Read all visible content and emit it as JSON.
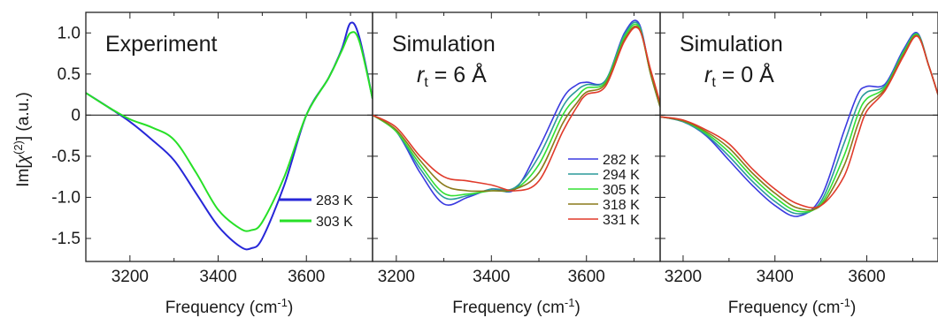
{
  "figure": {
    "ylabel_prefix": "Im[",
    "ylabel_chi": "χ",
    "ylabel_sup": "(2)",
    "ylabel_suffix": "] (a.u.)",
    "xlabel": "Frequency (cm",
    "xlabel_sup": "-1",
    "xlabel_suffix": ")",
    "yticks": [
      1.0,
      0.5,
      0,
      -0.5,
      -1.0,
      -1.5
    ],
    "ytick_labels": [
      "1.0",
      "0.5",
      "0",
      "-0.5",
      "-1.0",
      "-1.5"
    ]
  },
  "chart_data": [
    {
      "type": "line",
      "title": "Experiment",
      "xlabel": "Frequency (cm-1)",
      "ylabel": "Im[χ(2)] (a.u.)",
      "xlim": [
        3100,
        3750
      ],
      "ylim": [
        -1.78,
        1.25
      ],
      "xticks": [
        3200,
        3400,
        3600
      ],
      "xtick_labels": [
        "3200",
        "3400",
        "3600"
      ],
      "legend_position": "lower-right",
      "series": [
        {
          "name": "283 K",
          "color": "#2727d8",
          "x": [
            3100,
            3150,
            3200,
            3250,
            3300,
            3350,
            3400,
            3450,
            3475,
            3500,
            3550,
            3600,
            3650,
            3680,
            3700,
            3720,
            3750
          ],
          "y": [
            0.27,
            0.1,
            -0.08,
            -0.3,
            -0.55,
            -0.95,
            -1.35,
            -1.6,
            -1.62,
            -1.5,
            -0.85,
            0.0,
            0.45,
            0.8,
            1.12,
            0.95,
            0.2
          ]
        },
        {
          "name": "303 K",
          "color": "#27e027",
          "x": [
            3100,
            3150,
            3200,
            3250,
            3300,
            3350,
            3400,
            3450,
            3475,
            3500,
            3550,
            3600,
            3650,
            3680,
            3700,
            3720,
            3750
          ],
          "y": [
            0.27,
            0.1,
            -0.05,
            -0.15,
            -0.3,
            -0.7,
            -1.15,
            -1.38,
            -1.4,
            -1.3,
            -0.75,
            0.0,
            0.45,
            0.78,
            1.0,
            0.9,
            0.2
          ]
        }
      ]
    },
    {
      "type": "line",
      "title": "Simulation",
      "subtitle_r": "r",
      "subtitle_sub": "t",
      "subtitle_value": " = 6 Å",
      "xlabel": "Frequency (cm-1)",
      "xlim": [
        3150,
        3755
      ],
      "ylim": [
        -1.78,
        1.25
      ],
      "xticks": [
        3200,
        3400,
        3600
      ],
      "xtick_labels": [
        "3200",
        "3400",
        "3600"
      ],
      "legend_position": "lower-right",
      "series": [
        {
          "name": "282 K",
          "color": "#3a3ae0",
          "x": [
            3150,
            3200,
            3250,
            3300,
            3350,
            3400,
            3450,
            3500,
            3550,
            3580,
            3600,
            3640,
            3680,
            3710,
            3735,
            3755
          ],
          "y": [
            0.0,
            -0.2,
            -0.7,
            -1.08,
            -1.0,
            -0.9,
            -0.9,
            -0.4,
            0.2,
            0.37,
            0.4,
            0.42,
            1.0,
            1.12,
            0.5,
            0.1
          ]
        },
        {
          "name": "294 K",
          "color": "#2a9a9a",
          "x": [
            3150,
            3200,
            3250,
            3300,
            3350,
            3400,
            3450,
            3500,
            3550,
            3580,
            3600,
            3640,
            3680,
            3710,
            3735,
            3755
          ],
          "y": [
            0.0,
            -0.2,
            -0.65,
            -1.0,
            -0.98,
            -0.9,
            -0.88,
            -0.5,
            0.1,
            0.3,
            0.37,
            0.42,
            0.98,
            1.1,
            0.5,
            0.1
          ]
        },
        {
          "name": "305 K",
          "color": "#33e033",
          "x": [
            3150,
            3200,
            3250,
            3300,
            3350,
            3400,
            3450,
            3500,
            3550,
            3580,
            3600,
            3640,
            3680,
            3710,
            3735,
            3755
          ],
          "y": [
            0.0,
            -0.2,
            -0.6,
            -0.95,
            -0.96,
            -0.92,
            -0.9,
            -0.6,
            0.0,
            0.22,
            0.33,
            0.4,
            0.95,
            1.08,
            0.5,
            0.1
          ]
        },
        {
          "name": "318 K",
          "color": "#8a7a1a",
          "x": [
            3150,
            3200,
            3250,
            3300,
            3350,
            3400,
            3450,
            3500,
            3550,
            3580,
            3600,
            3640,
            3680,
            3710,
            3735,
            3755
          ],
          "y": [
            0.0,
            -0.18,
            -0.55,
            -0.85,
            -0.92,
            -0.92,
            -0.9,
            -0.7,
            -0.1,
            0.15,
            0.28,
            0.38,
            0.92,
            1.06,
            0.5,
            0.1
          ]
        },
        {
          "name": "331 K",
          "color": "#e03a2a",
          "x": [
            3150,
            3200,
            3250,
            3300,
            3350,
            3400,
            3450,
            3500,
            3550,
            3580,
            3600,
            3640,
            3680,
            3710,
            3735,
            3755
          ],
          "y": [
            0.0,
            -0.15,
            -0.5,
            -0.75,
            -0.8,
            -0.85,
            -0.92,
            -0.8,
            -0.2,
            0.1,
            0.25,
            0.35,
            0.9,
            1.05,
            0.55,
            0.15
          ]
        }
      ]
    },
    {
      "type": "line",
      "title": "Simulation",
      "subtitle_r": "r",
      "subtitle_sub": "t",
      "subtitle_value": " = 0 Å",
      "xlabel": "Frequency (cm-1)",
      "xlim": [
        3150,
        3755
      ],
      "ylim": [
        -1.78,
        1.25
      ],
      "xticks": [
        3200,
        3400,
        3600
      ],
      "xtick_labels": [
        "3200",
        "3400",
        "3600"
      ],
      "series": [
        {
          "name": "282 K",
          "color": "#3a3ae0",
          "x": [
            3150,
            3200,
            3250,
            3300,
            3350,
            3400,
            3450,
            3500,
            3550,
            3580,
            3600,
            3640,
            3680,
            3710,
            3735,
            3755
          ],
          "y": [
            -0.02,
            -0.08,
            -0.25,
            -0.55,
            -0.85,
            -1.1,
            -1.23,
            -1.0,
            -0.2,
            0.25,
            0.35,
            0.38,
            0.8,
            1.0,
            0.6,
            0.25
          ]
        },
        {
          "name": "294 K",
          "color": "#2a9a9a",
          "x": [
            3150,
            3200,
            3250,
            3300,
            3350,
            3400,
            3450,
            3500,
            3550,
            3580,
            3600,
            3640,
            3680,
            3710,
            3735,
            3755
          ],
          "y": [
            -0.02,
            -0.08,
            -0.24,
            -0.5,
            -0.8,
            -1.05,
            -1.2,
            -1.05,
            -0.35,
            0.12,
            0.28,
            0.36,
            0.78,
            0.99,
            0.6,
            0.25
          ]
        },
        {
          "name": "305 K",
          "color": "#33e033",
          "x": [
            3150,
            3200,
            3250,
            3300,
            3350,
            3400,
            3450,
            3500,
            3550,
            3580,
            3600,
            3640,
            3680,
            3710,
            3735,
            3755
          ],
          "y": [
            -0.02,
            -0.07,
            -0.22,
            -0.45,
            -0.75,
            -1.0,
            -1.17,
            -1.08,
            -0.5,
            0.0,
            0.2,
            0.34,
            0.76,
            0.98,
            0.6,
            0.25
          ]
        },
        {
          "name": "318 K",
          "color": "#8a7a1a",
          "x": [
            3150,
            3200,
            3250,
            3300,
            3350,
            3400,
            3450,
            3500,
            3550,
            3580,
            3600,
            3640,
            3680,
            3710,
            3735,
            3755
          ],
          "y": [
            -0.02,
            -0.07,
            -0.2,
            -0.4,
            -0.7,
            -0.95,
            -1.13,
            -1.1,
            -0.62,
            -0.12,
            0.12,
            0.32,
            0.74,
            0.97,
            0.6,
            0.25
          ]
        },
        {
          "name": "331 K",
          "color": "#e03a2a",
          "x": [
            3150,
            3200,
            3250,
            3300,
            3350,
            3400,
            3450,
            3500,
            3550,
            3580,
            3600,
            3640,
            3680,
            3710,
            3735,
            3755
          ],
          "y": [
            -0.02,
            -0.06,
            -0.18,
            -0.35,
            -0.65,
            -0.9,
            -1.08,
            -1.1,
            -0.75,
            -0.25,
            0.05,
            0.3,
            0.72,
            0.96,
            0.6,
            0.25
          ]
        }
      ]
    }
  ]
}
